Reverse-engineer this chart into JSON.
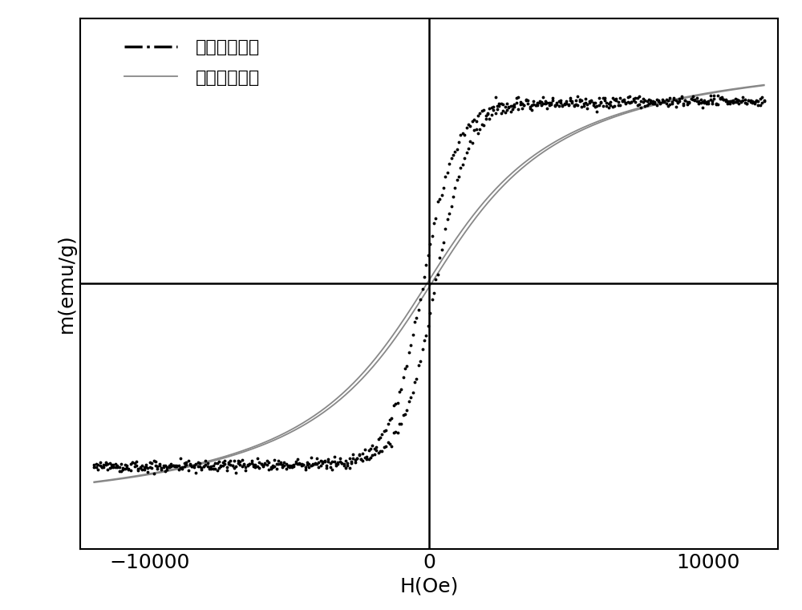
{
  "xlabel": "H(Oe)",
  "ylabel": "m(emu/g)",
  "xlim": [
    -12500,
    12500
  ],
  "ylim": [
    -1.15,
    1.15
  ],
  "xticks": [
    -10000,
    0,
    10000
  ],
  "legend_label_perp": "磁场垂直平面",
  "legend_label_para": "磁场平行平面",
  "perp_color": "#000000",
  "para_color": "#888888",
  "background_color": "#ffffff",
  "font_size": 18,
  "legend_font_size": 16,
  "axis_label_font_size": 18,
  "linewidth_para": 1.3,
  "axline_linewidth": 1.8
}
